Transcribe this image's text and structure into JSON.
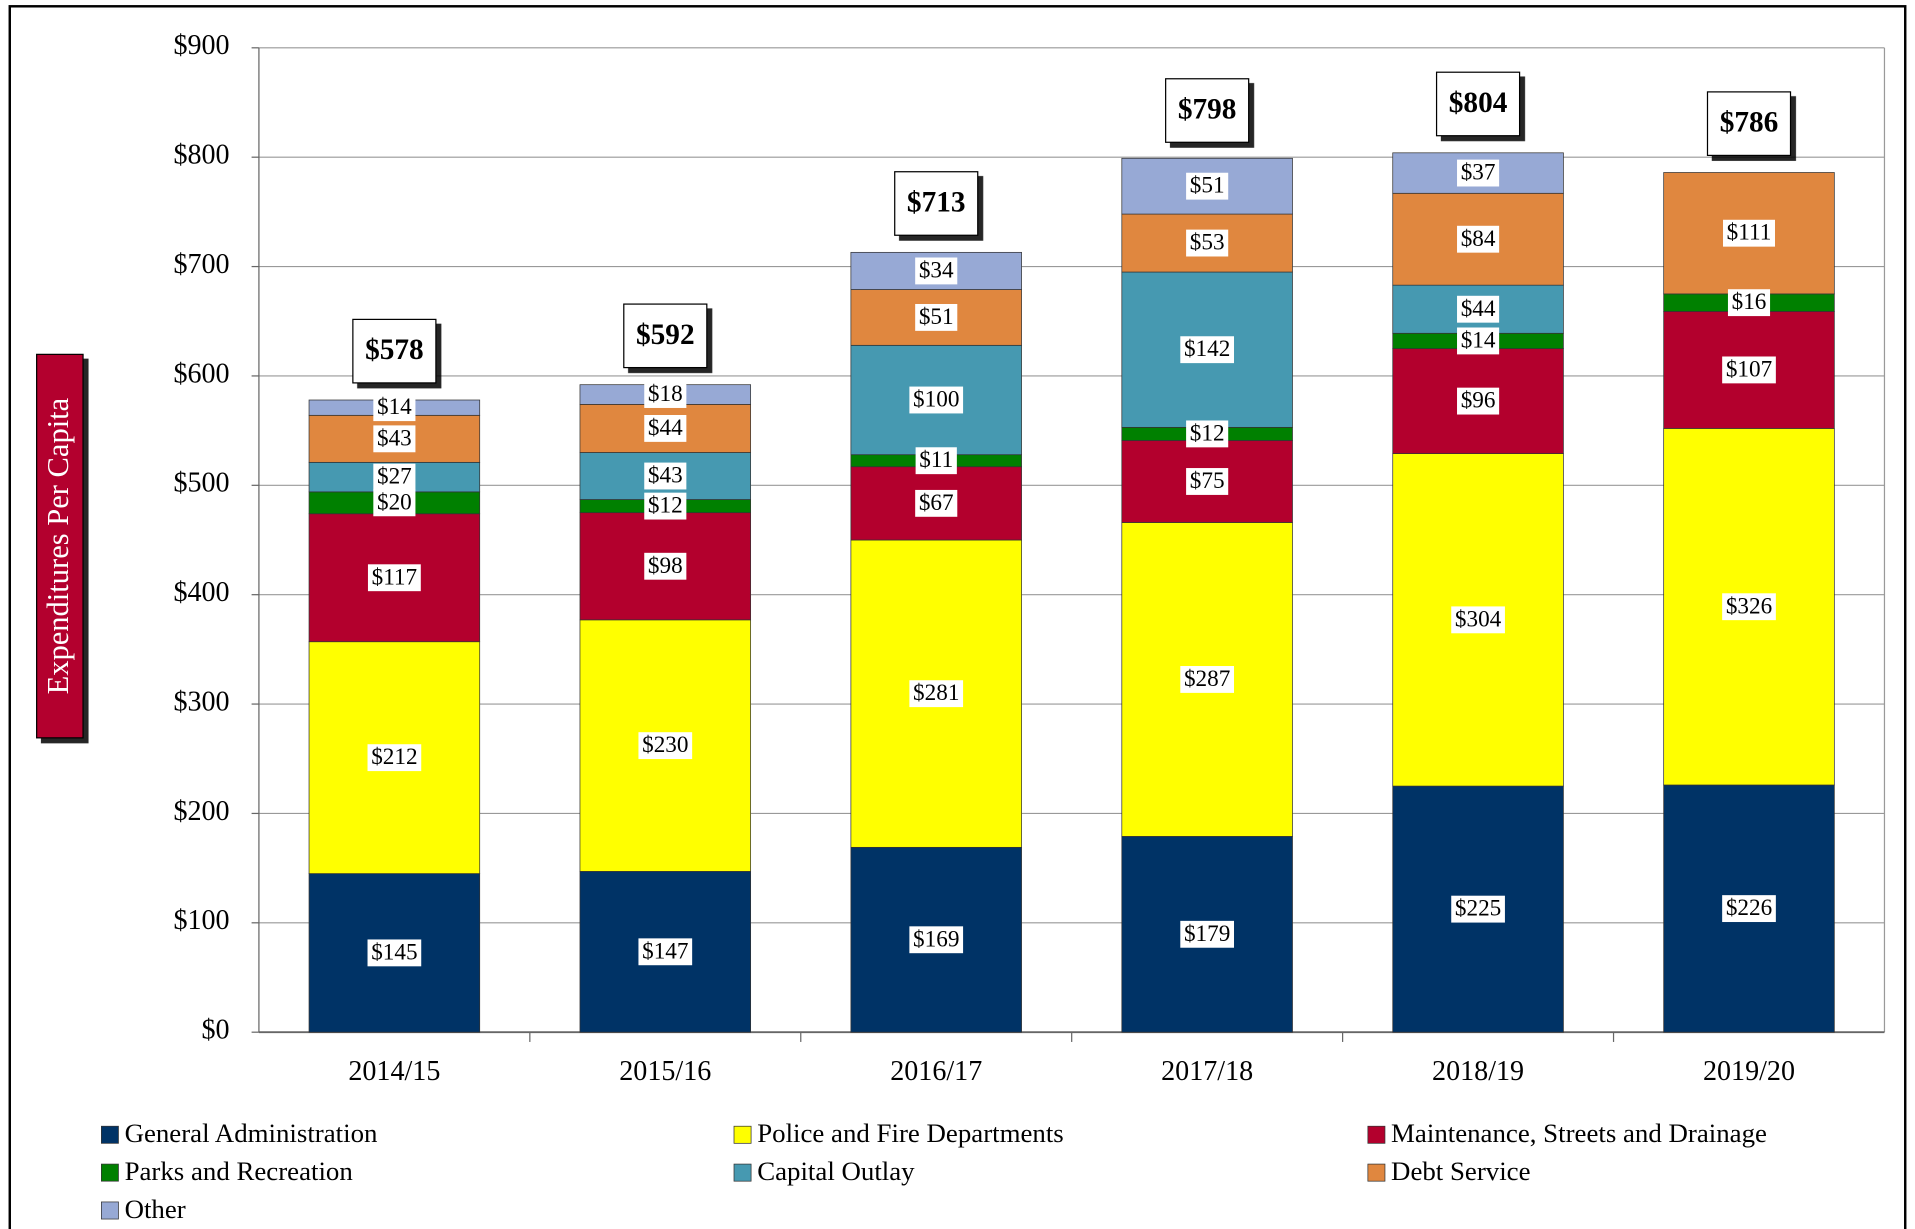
{
  "chart_data": {
    "type": "stacked_bar",
    "y_label": "Expenditures Per Capita",
    "categories": [
      "2014/15",
      "2015/16",
      "2016/17",
      "2017/18",
      "2018/19",
      "2019/20"
    ],
    "series": [
      {
        "name": "General Administration",
        "color": "#003366",
        "values": [
          145,
          147,
          169,
          179,
          225,
          226
        ],
        "value_labels": [
          "$145",
          "$147",
          "$169",
          "$179",
          "$225",
          "$226"
        ]
      },
      {
        "name": "Police and Fire Departments",
        "color": "#ffff00",
        "values": [
          212,
          230,
          281,
          287,
          304,
          326
        ],
        "value_labels": [
          "$212",
          "$230",
          "$281",
          "$287",
          "$304",
          "$326"
        ]
      },
      {
        "name": "Maintenance, Streets and Drainage",
        "color": "#b3002d",
        "values": [
          117,
          98,
          67,
          75,
          96,
          107
        ],
        "value_labels": [
          "$117",
          "$98",
          "$67",
          "$75",
          "$96",
          "$107"
        ]
      },
      {
        "name": "Parks and Recreation",
        "color": "#008000",
        "values": [
          20,
          12,
          11,
          12,
          14,
          16
        ],
        "value_labels": [
          "$20",
          "$12",
          "$11",
          "$12",
          "$14",
          "$16"
        ]
      },
      {
        "name": "Capital Outlay",
        "color": "#4699b1",
        "values": [
          27,
          43,
          100,
          142,
          44,
          null
        ],
        "value_labels": [
          "$27",
          "$43",
          "$100",
          "$142",
          "$44",
          null
        ]
      },
      {
        "name": "Debt Service",
        "color": "#e0873f",
        "values": [
          43,
          44,
          51,
          53,
          84,
          111
        ],
        "value_labels": [
          "$43",
          "$44",
          "$51",
          "$53",
          "$84",
          "$111"
        ]
      },
      {
        "name": "Other",
        "color": "#97a9d5",
        "values": [
          14,
          18,
          34,
          51,
          37,
          null
        ],
        "value_labels": [
          "$14",
          "$18",
          "$34",
          "$51",
          "$37",
          null
        ]
      }
    ],
    "totals": [
      578,
      592,
      713,
      798,
      804,
      786
    ],
    "total_labels": [
      "$578",
      "$592",
      "$713",
      "$798",
      "$804",
      "$786"
    ],
    "ylim": [
      0,
      900
    ],
    "yticks": [
      {
        "value": 0,
        "label": "$0"
      },
      {
        "value": 100,
        "label": "$100"
      },
      {
        "value": 200,
        "label": "$200"
      },
      {
        "value": 300,
        "label": "$300"
      },
      {
        "value": 400,
        "label": "$400"
      },
      {
        "value": 500,
        "label": "$500"
      },
      {
        "value": 600,
        "label": "$600"
      },
      {
        "value": 700,
        "label": "$700"
      },
      {
        "value": 800,
        "label": "$800"
      },
      {
        "value": 900,
        "label": "$900"
      }
    ],
    "grid": true,
    "legend": "bottom"
  }
}
